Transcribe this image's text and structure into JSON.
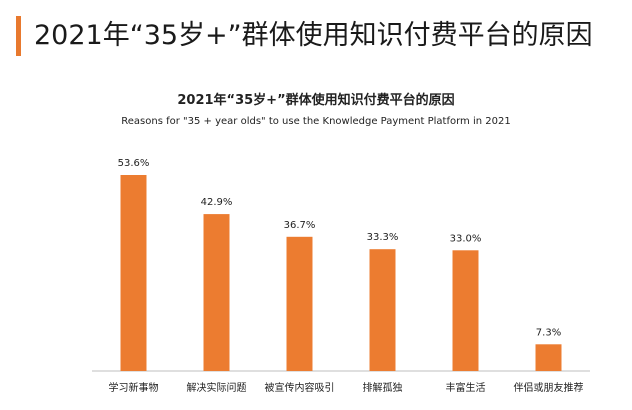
{
  "header": {
    "title": "2021年“35岁+”群体使用知识付费平台的原因"
  },
  "colors": {
    "accent": "#e8792e",
    "bar": "#ec7c30",
    "text": "#222222",
    "axis": "#bfbfbf"
  },
  "chart_data": {
    "type": "bar",
    "title": "2021年“35岁+”群体使用知识付费平台的原因",
    "subtitle": "Reasons for \"35 + year olds\" to use the Knowledge Payment Platform in 2021",
    "categories": [
      "学习新事物",
      "解决实际问题",
      "被宣传内容吸引",
      "排解孤独",
      "丰富生活",
      "伴侣或朋友推荐"
    ],
    "values": [
      53.6,
      42.9,
      36.7,
      33.3,
      33.0,
      7.3
    ],
    "value_labels": [
      "53.6%",
      "42.9%",
      "36.7%",
      "33.3%",
      "33.0%",
      "7.3%"
    ],
    "unit": "%",
    "ylim": [
      0,
      53.6
    ],
    "grid": false,
    "legend": "none"
  }
}
